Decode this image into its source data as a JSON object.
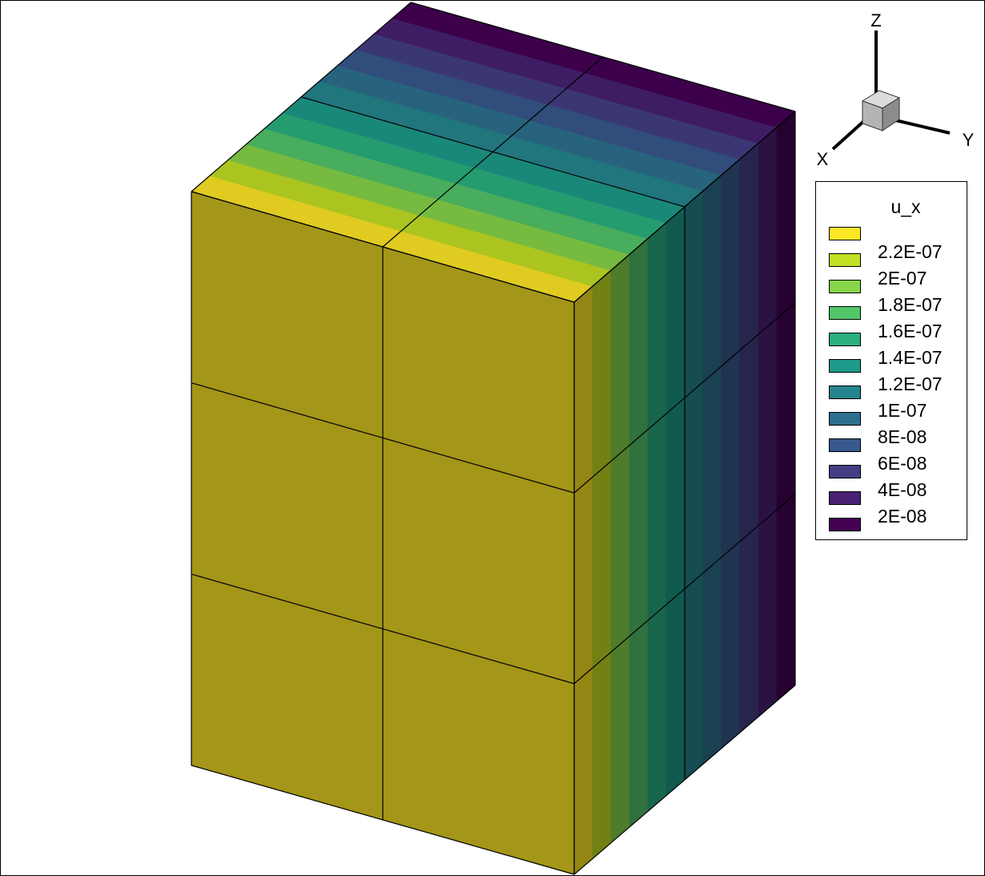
{
  "chart_data": {
    "type": "heatmap",
    "title": "",
    "variable": "u_x",
    "axes": {
      "x": "X",
      "y": "Y",
      "z": "Z"
    },
    "mesh": {
      "x_elements": 2,
      "y_elements": 2,
      "z_elements": 3
    },
    "y_band_values": [
      2.3e-07,
      2.1e-07,
      1.9e-07,
      1.7e-07,
      1.5e-07,
      1.3e-07,
      1.1e-07,
      9e-08,
      7e-08,
      5e-08,
      3e-08,
      1e-08
    ],
    "legend": {
      "title": "u_x",
      "levels": [
        {
          "label": "",
          "color": "#fde725"
        },
        {
          "label": "2.2E-07",
          "color": "#c2df23"
        },
        {
          "label": "2E-07",
          "color": "#86d549"
        },
        {
          "label": "1.8E-07",
          "color": "#52c569"
        },
        {
          "label": "1.6E-07",
          "color": "#2ab07f"
        },
        {
          "label": "1.4E-07",
          "color": "#1e9b8a"
        },
        {
          "label": "1.2E-07",
          "color": "#25858e"
        },
        {
          "label": "1E-07",
          "color": "#2d708e"
        },
        {
          "label": "8E-08",
          "color": "#38588c"
        },
        {
          "label": "6E-08",
          "color": "#433e85"
        },
        {
          "label": "4E-08",
          "color": "#482173"
        },
        {
          "label": "2E-08",
          "color": "#440154"
        }
      ]
    }
  }
}
